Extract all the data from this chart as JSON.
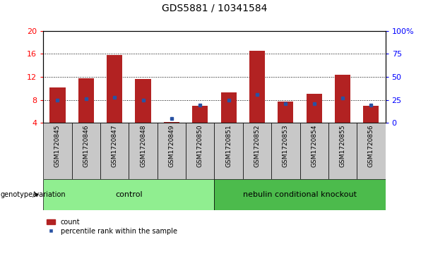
{
  "title": "GDS5881 / 10341584",
  "samples": [
    "GSM1720845",
    "GSM1720846",
    "GSM1720847",
    "GSM1720848",
    "GSM1720849",
    "GSM1720850",
    "GSM1720851",
    "GSM1720852",
    "GSM1720853",
    "GSM1720854",
    "GSM1720855",
    "GSM1720856"
  ],
  "count_values": [
    10.2,
    11.7,
    15.8,
    11.6,
    4.2,
    7.0,
    9.3,
    16.5,
    7.7,
    9.1,
    12.3,
    7.0
  ],
  "percentile_right": [
    25,
    26,
    28,
    25,
    5,
    19,
    25,
    31,
    21,
    21,
    27,
    19
  ],
  "ymin": 4,
  "ymax": 20,
  "y_ticks_left": [
    4,
    8,
    12,
    16,
    20
  ],
  "y_ticks_right": [
    0,
    25,
    50,
    75,
    100
  ],
  "y_ticks_right_labels": [
    "0",
    "25",
    "50",
    "75",
    "100%"
  ],
  "group_labels": [
    "control",
    "nebulin conditional knockout"
  ],
  "group_sample_ranges": [
    [
      0,
      5
    ],
    [
      6,
      11
    ]
  ],
  "genotype_label": "genotype/variation",
  "legend_count_label": "count",
  "legend_percentile_label": "percentile rank within the sample",
  "bar_color": "#b22222",
  "percentile_color": "#2952a3",
  "group_colors": [
    "#90ee90",
    "#4cbb4c"
  ],
  "label_bg_color": "#c8c8c8",
  "bar_width": 0.55,
  "title_fontsize": 10,
  "tick_fontsize": 8,
  "sample_fontsize": 6.5,
  "group_fontsize": 8,
  "legend_fontsize": 7,
  "genotype_fontsize": 7
}
